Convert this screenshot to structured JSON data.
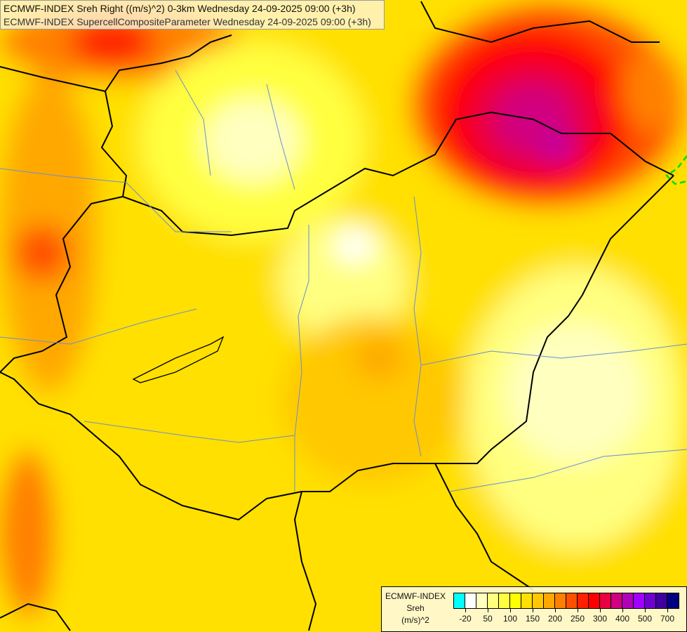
{
  "title": {
    "line1": "ECMWF-INDEX Sreh Right ((m/s)^2) 0-3km Wednesday 24-09-2025 09:00 (+3h)",
    "line2": "ECMWF-INDEX SupercellCompositeParameter Wednesday 24-09-2025 09:00 (+3h)"
  },
  "legend": {
    "model": "ECMWF-INDEX",
    "variable": "Sreh",
    "unit": "(m/s)^2",
    "colors": [
      "#00ffff",
      "#ffffff",
      "#ffffc0",
      "#ffff80",
      "#ffff40",
      "#ffff00",
      "#ffe000",
      "#ffc800",
      "#ffa800",
      "#ff8000",
      "#ff5000",
      "#ff2000",
      "#ff0000",
      "#e80040",
      "#d00080",
      "#b000b8",
      "#a000ff",
      "#7000d0",
      "#4000a0",
      "#000080"
    ],
    "tick_labels": [
      "-20",
      "50",
      "100",
      "150",
      "200",
      "250",
      "300",
      "400",
      "500",
      "700"
    ]
  },
  "palette": {
    "background": "#ffe000",
    "border": "#000000",
    "river": "#6a8fd0",
    "scp_contour": "#00dd00"
  }
}
